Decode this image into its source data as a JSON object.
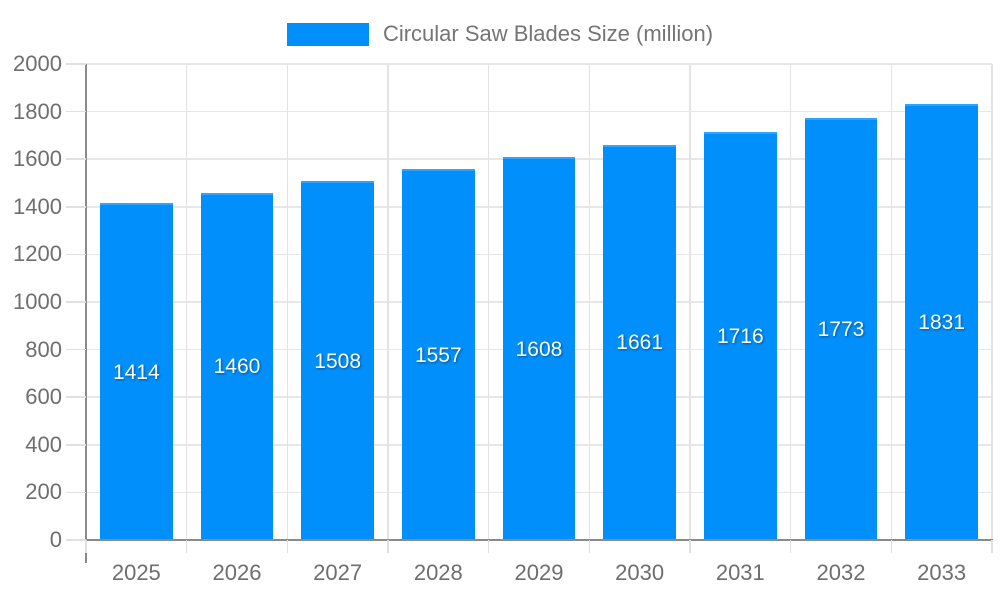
{
  "chart_data": {
    "type": "bar",
    "title": "Circular Saw Blades Size (million)",
    "categories": [
      "2025",
      "2026",
      "2027",
      "2028",
      "2029",
      "2030",
      "2031",
      "2032",
      "2033"
    ],
    "series": [
      {
        "name": "Circular Saw Blades Size (million)",
        "values": [
          1414,
          1460,
          1508,
          1557,
          1608,
          1661,
          1716,
          1773,
          1831
        ]
      }
    ],
    "xlabel": "",
    "ylabel": "",
    "ylim": [
      0,
      2000
    ],
    "y_ticks": [
      0,
      200,
      400,
      600,
      800,
      1000,
      1200,
      1400,
      1600,
      1800,
      2000
    ],
    "grid": true,
    "legend_position": "top",
    "bar_width_pct": 72,
    "data_labels": "inside-center-white"
  },
  "legend": {
    "label": "Circular Saw Blades Size (million)",
    "swatch_color": "#008FFB"
  },
  "colors": {
    "bar": "#008FFB",
    "bar_top_edge": "#2da4ff",
    "axis_line": "#8a8a8a",
    "gridline": "#e7e7e7",
    "tick": "#e0e0e0",
    "tick_label": "#6e6e6e",
    "legend_text": "#757575",
    "bar_label": "#ffffff",
    "background": "#ffffff"
  }
}
